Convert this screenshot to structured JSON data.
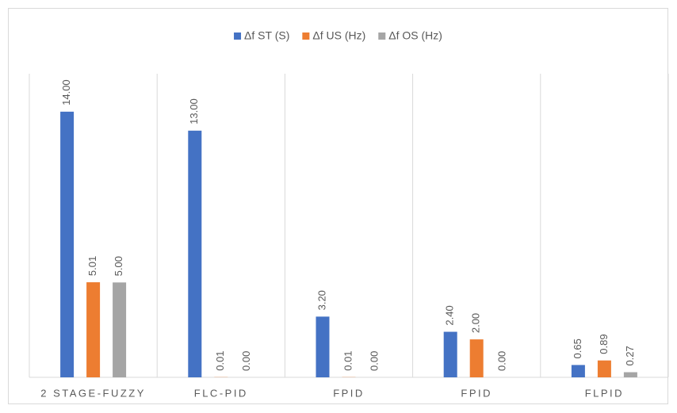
{
  "chart_data": {
    "type": "bar",
    "categories": [
      "2 STAGE-FUZZY",
      "FLC-PID",
      "FPID",
      "FPID",
      "FLPID"
    ],
    "series": [
      {
        "name": "Δf ST (S)",
        "color": "#4472c4",
        "values": [
          14,
          13,
          3.2,
          2.4,
          0.65
        ],
        "value_labels": [
          "14.00",
          "13.00",
          "3.20",
          "2.40",
          "0.65"
        ]
      },
      {
        "name": "Δf US (Hz)",
        "color": "#ed7d31",
        "values": [
          5.01,
          0.01,
          0.01,
          2,
          0.89
        ],
        "value_labels": [
          "5.01",
          "0.01",
          "0.01",
          "2.00",
          "0.89"
        ]
      },
      {
        "name": "Δf OS (Hz)",
        "color": "#a5a5a5",
        "values": [
          5,
          0,
          0,
          0,
          0.27
        ],
        "value_labels": [
          "5.00",
          "0.00",
          "0.00",
          "0.00",
          "0.27"
        ]
      }
    ],
    "ylim": [
      0,
      16
    ],
    "legend": "top"
  }
}
